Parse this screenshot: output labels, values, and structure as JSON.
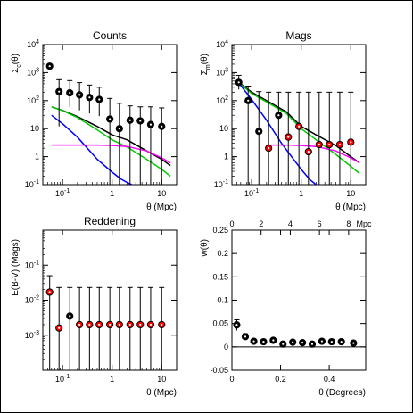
{
  "chart_data": [
    {
      "type": "scatter",
      "title": "Counts",
      "xlabel": "θ (Mpc)",
      "ylabel_main": "Σ",
      "ylabel_sub": "c",
      "ylabel_tail": "(θ)",
      "x_scale": "log",
      "y_scale": "log",
      "xlim": [
        0.04,
        20
      ],
      "ylim": [
        0.1,
        10000
      ],
      "x_ticks": [
        {
          "value": 0.1,
          "base": "10",
          "exp": "-1"
        },
        {
          "value": 1,
          "base": "1",
          "exp": ""
        },
        {
          "value": 10,
          "base": "10",
          "exp": ""
        }
      ],
      "y_ticks": [
        {
          "value": 0.1,
          "base": "10",
          "exp": "-1"
        },
        {
          "value": 1,
          "base": "1",
          "exp": ""
        },
        {
          "value": 10,
          "base": "10",
          "exp": ""
        },
        {
          "value": 100,
          "base": "10",
          "exp": "2"
        },
        {
          "value": 1000,
          "base": "10",
          "exp": "3"
        },
        {
          "value": 10000,
          "base": "10",
          "exp": "4"
        }
      ],
      "points": [
        {
          "x": 0.055,
          "y": 1700,
          "lo": 1700,
          "hi": 1700,
          "color": "#000000"
        },
        {
          "x": 0.085,
          "y": 210,
          "lo": 12,
          "hi": 560,
          "color": "#000000"
        },
        {
          "x": 0.14,
          "y": 190,
          "lo": 60,
          "hi": 520,
          "color": "#000000"
        },
        {
          "x": 0.22,
          "y": 160,
          "lo": 45,
          "hi": 440,
          "color": "#000000"
        },
        {
          "x": 0.35,
          "y": 130,
          "lo": 35,
          "hi": 360,
          "color": "#000000"
        },
        {
          "x": 0.55,
          "y": 110,
          "lo": 28,
          "hi": 300,
          "color": "#000000"
        },
        {
          "x": 0.9,
          "y": 22,
          "lo": 0.1,
          "hi": 120,
          "color": "#000000"
        },
        {
          "x": 1.4,
          "y": 10,
          "lo": 0.1,
          "hi": 80,
          "color": "#000000"
        },
        {
          "x": 2.3,
          "y": 20,
          "lo": 0.1,
          "hi": 65,
          "color": "#000000"
        },
        {
          "x": 3.7,
          "y": 19,
          "lo": 0.1,
          "hi": 60,
          "color": "#000000"
        },
        {
          "x": 6,
          "y": 14,
          "lo": 0.1,
          "hi": 60,
          "color": "#000000"
        },
        {
          "x": 10,
          "y": 12,
          "lo": 0.1,
          "hi": 55,
          "color": "#000000"
        }
      ],
      "curves": [
        {
          "color": "#000000",
          "x": [
            0.06,
            0.1,
            0.2,
            0.5,
            1,
            2,
            5,
            10,
            15
          ],
          "y": [
            60,
            45,
            27,
            12,
            6,
            4,
            1.6,
            0.8,
            0.48
          ]
        },
        {
          "color": "#00cc00",
          "x": [
            0.06,
            0.1,
            0.2,
            0.5,
            1,
            2,
            5,
            10,
            15
          ],
          "y": [
            60,
            44,
            25,
            9,
            4,
            2.2,
            0.8,
            0.35,
            0.2
          ]
        },
        {
          "color": "#0000ff",
          "x": [
            0.06,
            0.1,
            0.2,
            0.5,
            1,
            1.5,
            2,
            2.5
          ],
          "y": [
            30,
            15,
            5,
            0.8,
            0.28,
            0.16,
            0.12,
            0.1
          ]
        },
        {
          "color": "#ff00ff",
          "x": [
            0.06,
            0.5,
            1,
            2,
            5,
            10,
            15
          ],
          "y": [
            2.6,
            2.6,
            2.5,
            2.3,
            1.6,
            0.9,
            0.6
          ]
        }
      ]
    },
    {
      "type": "scatter",
      "title": "Mags",
      "xlabel": "θ (Mpc)",
      "ylabel_main": "Σ",
      "ylabel_sub": "m",
      "ylabel_tail": "(θ)",
      "x_scale": "log",
      "y_scale": "log",
      "xlim": [
        0.04,
        20
      ],
      "ylim": [
        0.1,
        10000
      ],
      "x_ticks": [
        {
          "value": 0.1,
          "base": "10",
          "exp": "-1"
        },
        {
          "value": 1,
          "base": "1",
          "exp": ""
        },
        {
          "value": 10,
          "base": "10",
          "exp": ""
        }
      ],
      "y_ticks": [
        {
          "value": 0.1,
          "base": "10",
          "exp": "-1"
        },
        {
          "value": 1,
          "base": "1",
          "exp": ""
        },
        {
          "value": 10,
          "base": "10",
          "exp": ""
        },
        {
          "value": 100,
          "base": "10",
          "exp": "2"
        },
        {
          "value": 1000,
          "base": "10",
          "exp": "3"
        },
        {
          "value": 10000,
          "base": "10",
          "exp": "4"
        }
      ],
      "points": [
        {
          "x": 0.055,
          "y": 450,
          "lo": 250,
          "hi": 800,
          "color": "#000000"
        },
        {
          "x": 0.085,
          "y": 100,
          "lo": 0.1,
          "hi": 330,
          "color": "#000000"
        },
        {
          "x": 0.14,
          "y": 8,
          "lo": 0.1,
          "hi": 210,
          "color": "#000000"
        },
        {
          "x": 0.22,
          "y": 2,
          "lo": 0.1,
          "hi": 200,
          "color": "#ff0000"
        },
        {
          "x": 0.35,
          "y": 30,
          "lo": 0.1,
          "hi": 200,
          "color": "#000000"
        },
        {
          "x": 0.55,
          "y": 5,
          "lo": 0.1,
          "hi": 200,
          "color": "#ff0000"
        },
        {
          "x": 0.9,
          "y": 12,
          "lo": 0.1,
          "hi": 200,
          "color": "#ff0000"
        },
        {
          "x": 1.4,
          "y": 1.5,
          "lo": 0.1,
          "hi": 200,
          "color": "#ff0000"
        },
        {
          "x": 2.3,
          "y": 2.7,
          "lo": 0.1,
          "hi": 200,
          "color": "#ff0000"
        },
        {
          "x": 3.7,
          "y": 2.7,
          "lo": 0.1,
          "hi": 200,
          "color": "#ff0000"
        },
        {
          "x": 6,
          "y": 2.7,
          "lo": 0.1,
          "hi": 200,
          "color": "#ff0000"
        },
        {
          "x": 10,
          "y": 3.3,
          "lo": 0.1,
          "hi": 200,
          "color": "#ff0000"
        }
      ],
      "curves": [
        {
          "color": "#000000",
          "x": [
            0.06,
            0.1,
            0.2,
            0.5,
            1,
            2,
            5,
            10,
            15
          ],
          "y": [
            400,
            200,
            100,
            40,
            12,
            6,
            2.5,
            1,
            0.6
          ]
        },
        {
          "color": "#00cc00",
          "x": [
            0.06,
            0.1,
            0.2,
            0.5,
            1,
            2,
            5,
            10,
            15
          ],
          "y": [
            380,
            180,
            90,
            35,
            10,
            4,
            1.2,
            0.45,
            0.25
          ]
        },
        {
          "color": "#0000ff",
          "x": [
            0.06,
            0.1,
            0.2,
            0.4,
            0.7,
            1,
            1.5,
            2
          ],
          "y": [
            350,
            110,
            20,
            3,
            0.8,
            0.35,
            0.15,
            0.1
          ]
        },
        {
          "color": "#ff00ff",
          "x": [
            0.2,
            0.5,
            1,
            2,
            5,
            10,
            15
          ],
          "y": [
            2.6,
            2.6,
            2.5,
            2.3,
            1.6,
            0.9,
            0.6
          ]
        }
      ]
    },
    {
      "type": "scatter",
      "title": "Reddening",
      "xlabel": "θ (Mpc)",
      "ylabel": "E(B-V) (Mags)",
      "x_scale": "log",
      "y_scale": "log",
      "xlim": [
        0.04,
        20
      ],
      "ylim": [
        0.0001,
        1
      ],
      "x_ticks": [
        {
          "value": 0.1,
          "base": "10",
          "exp": "-1"
        },
        {
          "value": 1,
          "base": "1",
          "exp": ""
        },
        {
          "value": 10,
          "base": "10",
          "exp": ""
        }
      ],
      "y_ticks": [
        {
          "value": 0.001,
          "base": "10",
          "exp": "-3"
        },
        {
          "value": 0.01,
          "base": "10",
          "exp": "-2"
        },
        {
          "value": 0.1,
          "base": "10",
          "exp": "-1"
        }
      ],
      "points": [
        {
          "x": 0.055,
          "y": 0.017,
          "lo": 0.0001,
          "hi": 0.05,
          "color": "#ff0000"
        },
        {
          "x": 0.085,
          "y": 0.0016,
          "lo": 0.0001,
          "hi": 0.023,
          "color": "#ff0000"
        },
        {
          "x": 0.14,
          "y": 0.0035,
          "lo": 0.0001,
          "hi": 0.023,
          "color": "#000000"
        },
        {
          "x": 0.22,
          "y": 0.002,
          "lo": 0.0001,
          "hi": 0.023,
          "color": "#ff0000"
        },
        {
          "x": 0.35,
          "y": 0.002,
          "lo": 0.0001,
          "hi": 0.023,
          "color": "#ff0000"
        },
        {
          "x": 0.55,
          "y": 0.002,
          "lo": 0.0001,
          "hi": 0.023,
          "color": "#ff0000"
        },
        {
          "x": 0.9,
          "y": 0.002,
          "lo": 0.0001,
          "hi": 0.023,
          "color": "#ff0000"
        },
        {
          "x": 1.4,
          "y": 0.002,
          "lo": 0.0001,
          "hi": 0.023,
          "color": "#ff0000"
        },
        {
          "x": 2.3,
          "y": 0.002,
          "lo": 0.0001,
          "hi": 0.023,
          "color": "#ff0000"
        },
        {
          "x": 3.7,
          "y": 0.002,
          "lo": 0.0001,
          "hi": 0.023,
          "color": "#ff0000"
        },
        {
          "x": 6,
          "y": 0.002,
          "lo": 0.0001,
          "hi": 0.023,
          "color": "#ff0000"
        },
        {
          "x": 10,
          "y": 0.002,
          "lo": 0.0001,
          "hi": 0.023,
          "color": "#ff0000"
        }
      ],
      "curves": []
    },
    {
      "type": "scatter",
      "title": "",
      "xlabel": "θ (Degrees)",
      "ylabel": "w(θ)",
      "x2label": "Mpc",
      "x_scale": "linear",
      "y_scale": "linear",
      "xlim": [
        0,
        0.55
      ],
      "ylim": [
        -0.05,
        0.25
      ],
      "x2lim": [
        0,
        9.17
      ],
      "x_ticks": [
        {
          "value": 0,
          "base": "0",
          "exp": ""
        },
        {
          "value": 0.2,
          "base": "0.2",
          "exp": ""
        },
        {
          "value": 0.4,
          "base": "0.4",
          "exp": ""
        }
      ],
      "x2_ticks": [
        {
          "value": 0,
          "label": "0"
        },
        {
          "value": 2,
          "label": "2"
        },
        {
          "value": 4,
          "label": "4"
        },
        {
          "value": 6,
          "label": "6"
        },
        {
          "value": 8,
          "label": "8"
        }
      ],
      "y_ticks": [
        {
          "value": -0.05,
          "base": "-0.05",
          "exp": ""
        },
        {
          "value": 0,
          "base": "0",
          "exp": ""
        },
        {
          "value": 0.05,
          "base": "0.05",
          "exp": ""
        },
        {
          "value": 0.1,
          "base": "0.1",
          "exp": ""
        },
        {
          "value": 0.15,
          "base": "0.15",
          "exp": ""
        },
        {
          "value": 0.2,
          "base": "0.2",
          "exp": ""
        },
        {
          "value": 0.25,
          "base": "0.25",
          "exp": ""
        }
      ],
      "zero_line": true,
      "points": [
        {
          "x": 0.02,
          "y": 0.047,
          "lo": 0.035,
          "hi": 0.058,
          "color": "#000000"
        },
        {
          "x": 0.055,
          "y": 0.022,
          "lo": 0.016,
          "hi": 0.028,
          "color": "#000000"
        },
        {
          "x": 0.09,
          "y": 0.012,
          "lo": 0.008,
          "hi": 0.016,
          "color": "#000000"
        },
        {
          "x": 0.13,
          "y": 0.011,
          "lo": 0.008,
          "hi": 0.014,
          "color": "#000000"
        },
        {
          "x": 0.17,
          "y": 0.014,
          "lo": 0.011,
          "hi": 0.017,
          "color": "#000000"
        },
        {
          "x": 0.21,
          "y": 0.006,
          "lo": 0.004,
          "hi": 0.008,
          "color": "#000000"
        },
        {
          "x": 0.25,
          "y": 0.01,
          "lo": 0.008,
          "hi": 0.012,
          "color": "#000000"
        },
        {
          "x": 0.29,
          "y": 0.009,
          "lo": 0.007,
          "hi": 0.011,
          "color": "#000000"
        },
        {
          "x": 0.33,
          "y": 0.006,
          "lo": 0.004,
          "hi": 0.008,
          "color": "#000000"
        },
        {
          "x": 0.37,
          "y": 0.012,
          "lo": 0.01,
          "hi": 0.014,
          "color": "#000000"
        },
        {
          "x": 0.41,
          "y": 0.011,
          "lo": 0.009,
          "hi": 0.013,
          "color": "#000000"
        },
        {
          "x": 0.45,
          "y": 0.011,
          "lo": 0.009,
          "hi": 0.013,
          "color": "#000000"
        },
        {
          "x": 0.5,
          "y": 0.008,
          "lo": 0.006,
          "hi": 0.01,
          "color": "#000000"
        }
      ],
      "curves": []
    }
  ]
}
